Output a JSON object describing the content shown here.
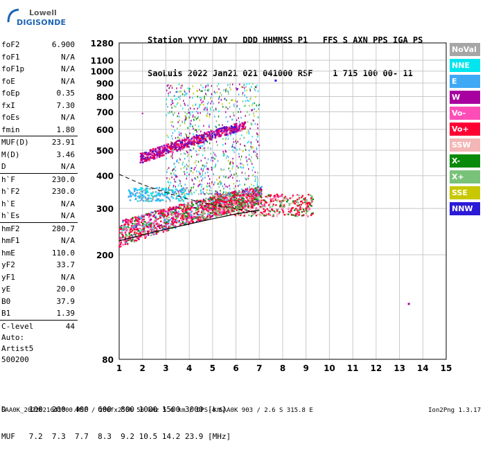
{
  "logo": {
    "line1": "Lowell",
    "line2": "DIGISONDE"
  },
  "header": {
    "labels": "Station YYYY DAY   DDD HHMMSS P1   FFS S AXN PPS IGA PS",
    "values": "SaoLuis 2022 Jan21 021 041000 RSF    1 715 100 00- 11"
  },
  "params": [
    {
      "name": "foF2",
      "value": "6.900"
    },
    {
      "name": "foF1",
      "value": "N/A"
    },
    {
      "name": "foF1p",
      "value": "N/A"
    },
    {
      "name": "foE",
      "value": "N/A"
    },
    {
      "name": "foEp",
      "value": "0.35"
    },
    {
      "name": "fxI",
      "value": "7.30"
    },
    {
      "name": "foEs",
      "value": "N/A"
    },
    {
      "name": "fmin",
      "value": "1.80"
    },
    {
      "name": "MUF(D)",
      "value": "23.91",
      "sep": true
    },
    {
      "name": "M(D)",
      "value": "3.46"
    },
    {
      "name": "D",
      "value": "N/A"
    },
    {
      "name": "h`F",
      "value": "230.0",
      "sep": true
    },
    {
      "name": "h`F2",
      "value": "230.0"
    },
    {
      "name": "h`E",
      "value": "N/A"
    },
    {
      "name": "h`Es",
      "value": "N/A"
    },
    {
      "name": "hmF2",
      "value": "280.7",
      "sep": true
    },
    {
      "name": "hmF1",
      "value": "N/A"
    },
    {
      "name": "hmE",
      "value": "110.0"
    },
    {
      "name": "yF2",
      "value": "33.7"
    },
    {
      "name": "yF1",
      "value": "N/A"
    },
    {
      "name": "yE",
      "value": "20.0"
    },
    {
      "name": "B0",
      "value": "37.9"
    },
    {
      "name": "B1",
      "value": "1.39"
    },
    {
      "name": "C-level",
      "value": "44",
      "sep": true
    }
  ],
  "auto": {
    "line1": "Auto:",
    "line2": "Artist5",
    "line3": "500200"
  },
  "legend": [
    {
      "label": "NoVal",
      "color": "#a6a6a6"
    },
    {
      "label": "NNE",
      "color": "#00e5ee"
    },
    {
      "label": "E",
      "color": "#3fa9f5"
    },
    {
      "label": "W",
      "color": "#a8009e"
    },
    {
      "label": "Vo-",
      "color": "#ff4db8"
    },
    {
      "label": "Vo+",
      "color": "#ff0033"
    },
    {
      "label": "SSW",
      "color": "#f4b6b6"
    },
    {
      "label": "X-",
      "color": "#0a8a0a"
    },
    {
      "label": "X+",
      "color": "#79c279"
    },
    {
      "label": "SSE",
      "color": "#c8c800"
    },
    {
      "label": "NNW",
      "color": "#2b1ad6"
    }
  ],
  "bottom": {
    "line1": "D     100  200  400  600  800 1000 1500 3000 [km]",
    "line2": "MUF   7.2  7.3  7.7  8.3  9.2 10.5 14.2 23.9 [MHz]"
  },
  "footer": {
    "left": "SAA0K_2022021041000.RSF / 280fx256h 50 kHz 5.0 km / DPS-4 SAA0K 903 / 2.6 S 315.8 E",
    "right": "Ion2Png 1.3.17"
  },
  "chart_data": {
    "type": "scatter",
    "title": "",
    "xlabel": "",
    "ylabel": "",
    "xlim": [
      1,
      15
    ],
    "ylim": [
      80,
      1280
    ],
    "y_scale": "log",
    "x_ticks": [
      1,
      2,
      3,
      4,
      5,
      6,
      7,
      8,
      9,
      10,
      11,
      12,
      13,
      14,
      15
    ],
    "y_ticks": [
      80,
      200,
      300,
      400,
      500,
      600,
      700,
      800,
      900,
      1000,
      1100,
      1280
    ],
    "grid": true,
    "legend_position": "right",
    "traces": [
      {
        "name": "F-trace o-mode",
        "x_range": [
          1.0,
          7.0
        ],
        "y_range": [
          220,
          330
        ]
      },
      {
        "name": "F-trace o-mode upper",
        "x_range": [
          6.0,
          7.0
        ],
        "y_range": [
          300,
          350
        ]
      },
      {
        "name": "F-trace x-mode",
        "x_range": [
          5.0,
          9.3
        ],
        "y_range": [
          280,
          340
        ]
      },
      {
        "name": "multi-hop echo",
        "x_range": [
          1.9,
          6.4
        ],
        "y_range": [
          450,
          640
        ]
      }
    ],
    "profile_line": {
      "x": [
        1.0,
        2.0,
        3.0,
        4.0,
        5.0,
        6.0,
        7.0
      ],
      "y": [
        226,
        238,
        250,
        262,
        274,
        286,
        296
      ]
    },
    "dashed_line": {
      "x": [
        1.0,
        2.0,
        3.0,
        4.0,
        5.0,
        6.0,
        6.9
      ],
      "y": [
        405,
        370,
        345,
        325,
        310,
        300,
        290
      ]
    }
  }
}
